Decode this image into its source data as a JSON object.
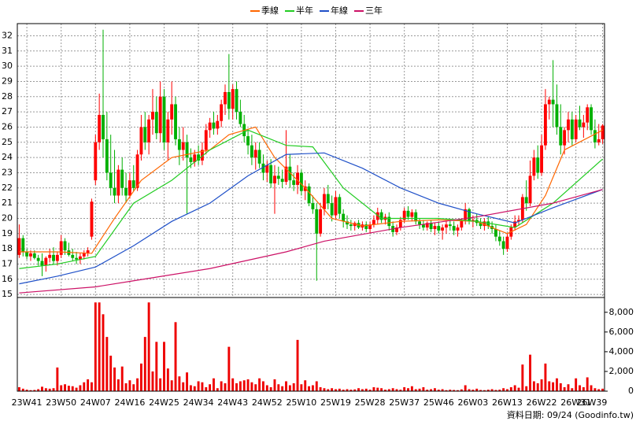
{
  "chart_data": {
    "type": "candlestick",
    "legend": "top",
    "grid": true,
    "source": "資料日期: 09/24 (Goodinfo.tw)",
    "up_color": "#ff0000",
    "down_color": "#00b000",
    "volume_color": "#ee0000",
    "ylim": [
      14.8,
      32.8
    ],
    "yticks": [
      15,
      16,
      17,
      18,
      19,
      20,
      21,
      22,
      23,
      24,
      25,
      26,
      27,
      28,
      29,
      30,
      31,
      32
    ],
    "y2lim": [
      0,
      9500
    ],
    "y2ticks": [
      0,
      {
        "value": 2000,
        "label": "2,000"
      },
      {
        "value": 4000,
        "label": "4,000"
      },
      {
        "value": 6000,
        "label": "6,000"
      },
      {
        "value": 8000,
        "label": "8,000"
      }
    ],
    "series": [
      {
        "name": "季線",
        "color": "#ff6600",
        "x": [
          0,
          10,
          19,
          25,
          32,
          40,
          50,
          55,
          62,
          67,
          75,
          82,
          90,
          100,
          110,
          120,
          128,
          133,
          138,
          143,
          153
        ],
        "values": [
          17.8,
          17.8,
          17.7,
          20,
          22.5,
          24,
          24.5,
          25.5,
          26,
          24,
          22,
          20,
          19.5,
          19.8,
          19.9,
          19.8,
          19,
          19.6,
          21.5,
          24.5,
          25.8
        ]
      },
      {
        "name": "半年",
        "color": "#22cc22",
        "x": [
          0,
          10,
          20,
          30,
          40,
          50,
          60,
          70,
          77,
          85,
          95,
          110,
          120,
          130,
          140,
          153
        ],
        "values": [
          16.7,
          17,
          17.5,
          21,
          22.5,
          24.5,
          25.8,
          24.8,
          24.7,
          22,
          20,
          20,
          19.8,
          19.4,
          21,
          23.9
        ]
      },
      {
        "name": "年線",
        "color": "#1f50c8",
        "x": [
          0,
          10,
          20,
          30,
          40,
          50,
          60,
          70,
          80,
          90,
          100,
          110,
          120,
          130,
          140,
          153
        ],
        "values": [
          15.7,
          16.2,
          16.8,
          18.2,
          19.8,
          21,
          22.8,
          24.2,
          24.3,
          23.3,
          22,
          21,
          20.3,
          19.7,
          20.7,
          21.9
        ]
      },
      {
        "name": "三年",
        "color": "#cc1166",
        "x": [
          0,
          20,
          30,
          50,
          70,
          80,
          100,
          120,
          140,
          153
        ],
        "values": [
          15.1,
          15.5,
          15.9,
          16.7,
          17.8,
          18.5,
          19.4,
          20.1,
          21,
          21.9
        ]
      }
    ],
    "categories": [
      null,
      null,
      "23W41",
      null,
      null,
      null,
      null,
      null,
      null,
      null,
      null,
      "23W50",
      null,
      null,
      null,
      null,
      null,
      null,
      null,
      null,
      "24W07",
      null,
      null,
      null,
      null,
      null,
      null,
      null,
      null,
      "24W16",
      null,
      null,
      null,
      null,
      null,
      null,
      null,
      null,
      "24W25",
      null,
      null,
      null,
      null,
      null,
      null,
      null,
      null,
      "24W34",
      null,
      null,
      null,
      null,
      null,
      null,
      null,
      null,
      "24W43",
      null,
      null,
      null,
      null,
      null,
      null,
      null,
      null,
      "24W52",
      null,
      null,
      null,
      null,
      null,
      null,
      null,
      null,
      "25W10",
      null,
      null,
      null,
      null,
      null,
      null,
      null,
      null,
      "25W19",
      null,
      null,
      null,
      null,
      null,
      null,
      null,
      null,
      "25W28",
      null,
      null,
      null,
      null,
      null,
      null,
      null,
      null,
      "25W37",
      null,
      null,
      null,
      null,
      null,
      null,
      null,
      null,
      "25W46",
      null,
      null,
      null,
      null,
      null,
      null,
      null,
      null,
      "26W03",
      null,
      null,
      null,
      null,
      null,
      null,
      null,
      null,
      "26W13",
      null,
      null,
      null,
      null,
      null,
      null,
      null,
      null,
      "26W22",
      null,
      null,
      null,
      null,
      null,
      null,
      null,
      null,
      "26W31",
      null,
      null,
      null,
      null,
      null,
      null,
      "26W39"
    ],
    "candles": [
      [
        17.6,
        19.6,
        17.4,
        18.7
      ],
      [
        18.7,
        18.9,
        17.5,
        17.8
      ],
      [
        17.8,
        18.0,
        17.3,
        17.5
      ],
      [
        17.5,
        17.9,
        17.2,
        17.7
      ],
      [
        17.7,
        17.9,
        17.3,
        17.4
      ],
      [
        17.4,
        17.6,
        16.9,
        17.2
      ],
      [
        17.2,
        17.7,
        16.2,
        16.9
      ],
      [
        16.9,
        17.5,
        16.5,
        17.4
      ],
      [
        17.4,
        18.0,
        17.1,
        17.6
      ],
      [
        17.6,
        18.1,
        17.0,
        17.2
      ],
      [
        17.2,
        17.8,
        16.9,
        17.6
      ],
      [
        17.6,
        18.9,
        17.4,
        18.5
      ],
      [
        18.5,
        18.7,
        17.6,
        17.9
      ],
      [
        17.9,
        18.4,
        17.5,
        17.6
      ],
      [
        17.6,
        18.0,
        17.2,
        17.4
      ],
      [
        17.4,
        17.8,
        17.0,
        17.3
      ],
      [
        17.3,
        17.7,
        17.0,
        17.5
      ],
      [
        17.5,
        17.9,
        17.3,
        17.7
      ],
      [
        17.7,
        18.1,
        17.5,
        17.9
      ],
      [
        18.8,
        21.3,
        18.6,
        21.1
      ],
      [
        22.5,
        25.5,
        22.2,
        25.0
      ],
      [
        25.0,
        28.2,
        24.5,
        26.8
      ],
      [
        26.8,
        32.4,
        24.0,
        25.2
      ],
      [
        25.2,
        27.0,
        22.5,
        23.0
      ],
      [
        23.0,
        25.5,
        21.5,
        22.0
      ],
      [
        22.0,
        24.5,
        21.0,
        21.5
      ],
      [
        21.5,
        23.5,
        21.0,
        23.2
      ],
      [
        23.2,
        24.0,
        21.5,
        22.0
      ],
      [
        22.0,
        23.0,
        21.0,
        21.5
      ],
      [
        21.5,
        23.0,
        21.3,
        22.5
      ],
      [
        22.5,
        23.5,
        21.8,
        22.0
      ],
      [
        22.0,
        24.5,
        21.8,
        24.2
      ],
      [
        24.2,
        26.8,
        23.8,
        26.0
      ],
      [
        26.0,
        27.0,
        24.5,
        25.0
      ],
      [
        25.0,
        26.8,
        24.2,
        26.5
      ],
      [
        26.5,
        28.5,
        25.5,
        27.0
      ],
      [
        27.0,
        28.0,
        25.2,
        25.6
      ],
      [
        25.6,
        29.0,
        25.0,
        28.0
      ],
      [
        28.0,
        28.5,
        24.5,
        25.0
      ],
      [
        25.0,
        27.0,
        23.8,
        26.5
      ],
      [
        26.5,
        29.0,
        25.5,
        27.5
      ],
      [
        27.5,
        28.0,
        24.8,
        25.2
      ],
      [
        25.2,
        26.0,
        23.5,
        24.5
      ],
      [
        24.5,
        26.0,
        23.8,
        25.0
      ],
      [
        25.0,
        25.5,
        20.3,
        24.0
      ],
      [
        24.0,
        24.6,
        23.3,
        23.7
      ],
      [
        23.7,
        24.5,
        23.4,
        24.2
      ],
      [
        24.2,
        24.8,
        23.5,
        23.8
      ],
      [
        23.8,
        25.0,
        23.5,
        24.5
      ],
      [
        24.5,
        26.2,
        24.2,
        25.8
      ],
      [
        25.8,
        26.6,
        25.3,
        26.3
      ],
      [
        26.3,
        27.0,
        25.5,
        25.9
      ],
      [
        25.9,
        26.8,
        25.5,
        26.4
      ],
      [
        26.4,
        27.8,
        26.0,
        27.5
      ],
      [
        27.5,
        28.8,
        26.8,
        28.3
      ],
      [
        28.3,
        30.8,
        26.5,
        27.2
      ],
      [
        27.2,
        28.8,
        26.5,
        28.5
      ],
      [
        28.5,
        29.0,
        26.5,
        27.0
      ],
      [
        27.0,
        27.8,
        26.0,
        26.2
      ],
      [
        26.2,
        26.8,
        25.0,
        25.4
      ],
      [
        25.4,
        25.9,
        24.2,
        24.8
      ],
      [
        24.8,
        25.5,
        23.5,
        24.0
      ],
      [
        24.0,
        25.0,
        23.2,
        24.5
      ],
      [
        24.5,
        25.0,
        23.3,
        23.6
      ],
      [
        23.6,
        24.2,
        22.5,
        23.0
      ],
      [
        23.0,
        23.8,
        22.4,
        23.5
      ],
      [
        23.5,
        23.9,
        22.0,
        22.3
      ],
      [
        22.3,
        23.5,
        20.3,
        22.8
      ],
      [
        22.8,
        23.4,
        22.2,
        22.6
      ],
      [
        22.6,
        23.2,
        22.0,
        22.4
      ],
      [
        22.4,
        25.8,
        22.2,
        23.4
      ],
      [
        23.4,
        24.2,
        22.0,
        22.5
      ],
      [
        22.5,
        23.0,
        21.8,
        22.2
      ],
      [
        22.2,
        23.5,
        21.6,
        23.0
      ],
      [
        23.0,
        23.2,
        21.5,
        21.8
      ],
      [
        21.8,
        22.5,
        21.2,
        22.1
      ],
      [
        22.1,
        22.3,
        20.8,
        21.0
      ],
      [
        21.0,
        21.5,
        20.3,
        20.6
      ],
      [
        20.6,
        21.0,
        15.9,
        19.0
      ],
      [
        19.0,
        21.0,
        18.8,
        20.6
      ],
      [
        20.6,
        22.0,
        20.2,
        21.6
      ],
      [
        21.6,
        22.2,
        20.6,
        21.0
      ],
      [
        21.0,
        21.5,
        19.8,
        20.2
      ],
      [
        20.2,
        21.8,
        20.0,
        21.4
      ],
      [
        21.4,
        21.6,
        20.0,
        20.3
      ],
      [
        20.3,
        20.6,
        19.4,
        19.8
      ],
      [
        19.8,
        20.2,
        19.3,
        19.6
      ],
      [
        19.6,
        19.9,
        19.2,
        19.5
      ],
      [
        19.5,
        19.8,
        19.2,
        19.7
      ],
      [
        19.7,
        19.9,
        19.3,
        19.4
      ],
      [
        19.4,
        19.8,
        19.2,
        19.6
      ],
      [
        19.6,
        19.8,
        19.1,
        19.3
      ],
      [
        19.3,
        19.8,
        19.0,
        19.6
      ],
      [
        19.6,
        20.2,
        19.4,
        19.9
      ],
      [
        19.9,
        20.7,
        19.6,
        20.4
      ],
      [
        20.4,
        20.6,
        19.7,
        19.9
      ],
      [
        19.9,
        20.3,
        19.6,
        20.1
      ],
      [
        20.1,
        20.4,
        19.2,
        19.5
      ],
      [
        19.5,
        19.8,
        18.8,
        19.1
      ],
      [
        19.1,
        19.6,
        18.9,
        19.4
      ],
      [
        19.4,
        20.1,
        19.2,
        19.9
      ],
      [
        19.9,
        20.7,
        19.7,
        20.5
      ],
      [
        20.5,
        20.8,
        19.9,
        20.1
      ],
      [
        20.1,
        20.6,
        19.8,
        20.4
      ],
      [
        20.4,
        20.6,
        19.6,
        19.8
      ],
      [
        19.8,
        20.0,
        19.3,
        19.6
      ],
      [
        19.6,
        19.9,
        19.2,
        19.4
      ],
      [
        19.4,
        19.8,
        19.2,
        19.7
      ],
      [
        19.7,
        19.9,
        19.1,
        19.3
      ],
      [
        19.3,
        19.7,
        18.9,
        19.5
      ],
      [
        19.5,
        19.8,
        19.0,
        19.2
      ],
      [
        19.2,
        19.6,
        18.6,
        19.4
      ],
      [
        19.4,
        19.8,
        19.0,
        19.6
      ],
      [
        19.6,
        19.9,
        19.2,
        19.5
      ],
      [
        19.5,
        19.8,
        18.9,
        19.2
      ],
      [
        19.2,
        19.6,
        18.8,
        19.4
      ],
      [
        19.4,
        20.0,
        19.2,
        19.9
      ],
      [
        19.9,
        21.0,
        19.6,
        20.6
      ],
      [
        20.6,
        20.7,
        19.6,
        19.8
      ],
      [
        19.8,
        20.2,
        19.4,
        19.9
      ],
      [
        19.9,
        20.3,
        19.5,
        19.7
      ],
      [
        19.7,
        20.0,
        19.3,
        19.5
      ],
      [
        19.5,
        20.0,
        19.2,
        19.8
      ],
      [
        19.8,
        20.1,
        19.3,
        19.5
      ],
      [
        19.5,
        19.8,
        19.0,
        19.3
      ],
      [
        19.3,
        19.6,
        18.5,
        18.8
      ],
      [
        18.8,
        19.2,
        18.2,
        18.5
      ],
      [
        18.5,
        18.8,
        17.6,
        18.0
      ],
      [
        18.0,
        19.0,
        17.8,
        18.8
      ],
      [
        18.8,
        19.6,
        18.6,
        19.4
      ],
      [
        19.4,
        20.2,
        19.2,
        19.8
      ],
      [
        19.8,
        20.2,
        19.5,
        19.9
      ],
      [
        19.9,
        21.6,
        19.7,
        21.4
      ],
      [
        21.4,
        22.5,
        20.5,
        21.0
      ],
      [
        21.0,
        23.8,
        20.8,
        22.8
      ],
      [
        22.8,
        24.5,
        22.5,
        24.0
      ],
      [
        24.0,
        24.8,
        22.6,
        23.0
      ],
      [
        23.0,
        25.5,
        22.8,
        24.8
      ],
      [
        24.8,
        28.5,
        24.5,
        27.5
      ],
      [
        27.5,
        28.0,
        26.5,
        27.8
      ],
      [
        27.8,
        30.4,
        26.0,
        27.5
      ],
      [
        27.5,
        28.8,
        25.5,
        26.0
      ],
      [
        26.0,
        27.5,
        24.2,
        24.8
      ],
      [
        24.8,
        26.0,
        24.2,
        25.8
      ],
      [
        25.8,
        27.0,
        25.0,
        26.5
      ],
      [
        26.5,
        27.0,
        24.8,
        25.2
      ],
      [
        25.2,
        26.8,
        25.0,
        26.5
      ],
      [
        26.5,
        27.4,
        25.8,
        26.0
      ],
      [
        26.0,
        26.8,
        25.3,
        26.3
      ],
      [
        26.3,
        27.5,
        25.8,
        27.3
      ],
      [
        27.3,
        27.5,
        25.5,
        25.8
      ],
      [
        25.8,
        26.5,
        24.6,
        25.0
      ],
      [
        25.0,
        26.2,
        24.8,
        25.2
      ],
      [
        25.2,
        26.2,
        24.9,
        26.1
      ]
    ],
    "volume": [
      400,
      250,
      150,
      100,
      120,
      200,
      450,
      300,
      250,
      300,
      2400,
      600,
      700,
      550,
      500,
      350,
      600,
      900,
      1200,
      900,
      9000,
      9000,
      7800,
      5500,
      3600,
      2400,
      1200,
      2500,
      800,
      1100,
      700,
      1300,
      2800,
      5500,
      9000,
      2000,
      5000,
      1300,
      5000,
      2300,
      1100,
      7000,
      1500,
      900,
      1900,
      600,
      500,
      1000,
      900,
      400,
      700,
      1300,
      300,
      1000,
      800,
      4500,
      1300,
      800,
      1000,
      1100,
      1200,
      900,
      700,
      1300,
      1000,
      600,
      400,
      1200,
      700,
      500,
      1000,
      600,
      800,
      5200,
      700,
      1100,
      500,
      600,
      1000,
      400,
      300,
      200,
      300,
      200,
      250,
      150,
      200,
      150,
      180,
      300,
      200,
      250,
      150,
      400,
      350,
      300,
      150,
      200,
      300,
      200,
      150,
      400,
      300,
      500,
      200,
      250,
      400,
      150,
      200,
      300,
      150,
      200,
      100,
      150,
      120,
      100,
      180,
      600,
      200,
      150,
      250,
      120,
      100,
      150,
      200,
      120,
      150,
      300,
      200,
      400,
      600,
      350,
      2700,
      500,
      3700,
      1000,
      800,
      1200,
      2800,
      1000,
      900,
      1300,
      800,
      400,
      700,
      300,
      1300,
      600,
      400,
      1400,
      600,
      300,
      200,
      250
    ]
  }
}
